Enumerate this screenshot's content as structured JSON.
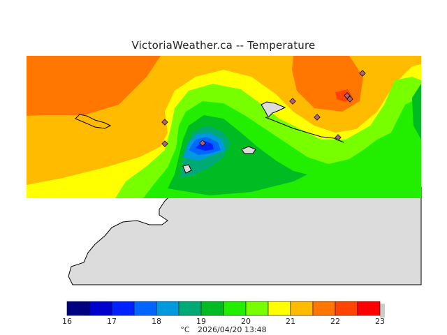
{
  "title": "VictoriaWeather.ca  --  Temperature",
  "legend": {
    "unit": "°C",
    "timestamp": "2026/04/20 13:48",
    "ticks": [
      "16",
      "17",
      "18",
      "19",
      "20",
      "21",
      "22",
      "23"
    ],
    "colors": [
      "#000080",
      "#0000cc",
      "#0022ff",
      "#0066ff",
      "#0099dd",
      "#00aa77",
      "#00bb22",
      "#22ee00",
      "#77ff00",
      "#ffff00",
      "#ffbb00",
      "#ff7700",
      "#ff4400",
      "#ff0000"
    ],
    "min": 16,
    "max": 23,
    "step": 0.5
  },
  "colors": {
    "land": "#dcdcdc",
    "coastline": "#000000",
    "station_marker": "#7a5080"
  },
  "stations_count_visible": 9
}
